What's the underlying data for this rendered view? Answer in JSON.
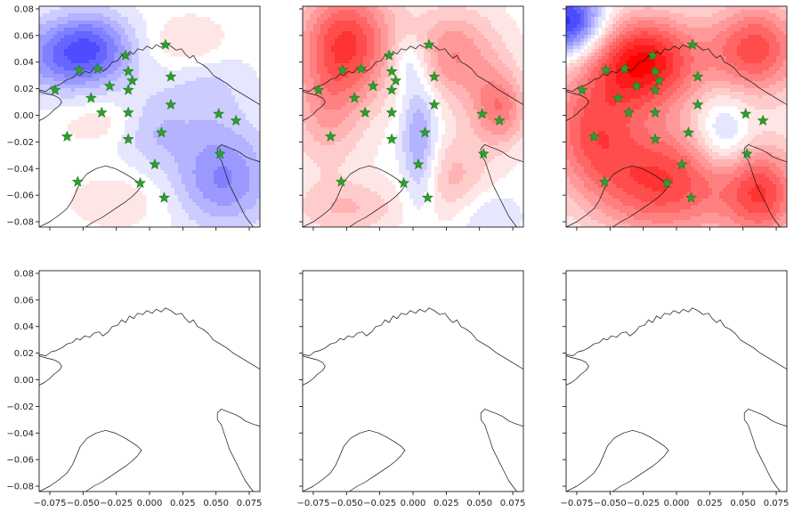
{
  "figure": {
    "layout": "2x3 grid of map panels with shared axes",
    "colormap": "bwr"
  },
  "chart_data": {
    "type": "heatmap",
    "description_units": "x and y in data units",
    "xlim": [
      -0.083,
      0.083
    ],
    "ylim": [
      -0.084,
      0.082
    ],
    "x_ticks": [
      -0.075,
      -0.05,
      -0.025,
      0.0,
      0.025,
      0.05,
      0.075
    ],
    "x_tick_labels": [
      "−0.075",
      "−0.050",
      "−0.025",
      "0.000",
      "0.025",
      "0.050",
      "0.075"
    ],
    "y_ticks": [
      0.08,
      0.06,
      0.04,
      0.02,
      0.0,
      -0.02,
      -0.04,
      -0.06,
      -0.08
    ],
    "y_tick_labels": [
      "0.08",
      "0.06",
      "0.04",
      "0.02",
      "0.00",
      "−0.02",
      "−0.04",
      "−0.06",
      "−0.08"
    ],
    "tick_labels_shown": "left column y-labels, bottom row x-labels",
    "grid": false,
    "marker_color": "#2ca02c",
    "marker_shape": "star",
    "stations": [
      {
        "x": -0.071,
        "y": 0.019
      },
      {
        "x": -0.053,
        "y": 0.034
      },
      {
        "x": -0.039,
        "y": 0.035
      },
      {
        "x": -0.018,
        "y": 0.045
      },
      {
        "x": 0.012,
        "y": 0.053
      },
      {
        "x": -0.044,
        "y": 0.013
      },
      {
        "x": -0.03,
        "y": 0.022
      },
      {
        "x": -0.016,
        "y": 0.033
      },
      {
        "x": -0.013,
        "y": 0.026
      },
      {
        "x": -0.016,
        "y": 0.019
      },
      {
        "x": 0.016,
        "y": 0.029
      },
      {
        "x": -0.036,
        "y": 0.002
      },
      {
        "x": -0.016,
        "y": 0.002
      },
      {
        "x": 0.016,
        "y": 0.008
      },
      {
        "x": 0.052,
        "y": 0.001
      },
      {
        "x": 0.065,
        "y": -0.004
      },
      {
        "x": -0.062,
        "y": -0.016
      },
      {
        "x": -0.016,
        "y": -0.018
      },
      {
        "x": 0.009,
        "y": -0.013
      },
      {
        "x": 0.053,
        "y": -0.029
      },
      {
        "x": 0.004,
        "y": -0.037
      },
      {
        "x": -0.054,
        "y": -0.05
      },
      {
        "x": -0.007,
        "y": -0.051
      },
      {
        "x": 0.011,
        "y": -0.062
      }
    ],
    "panels": [
      {
        "row": 0,
        "col": 0,
        "type": "heatmap",
        "has_field": true,
        "has_markers": true,
        "field_blobs": [
          {
            "x": -0.06,
            "y": 0.045,
            "sx": 0.03,
            "sy": 0.02,
            "a": -0.55
          },
          {
            "x": -0.04,
            "y": 0.055,
            "sx": 0.02,
            "sy": 0.018,
            "a": -0.25
          },
          {
            "x": 0.055,
            "y": -0.05,
            "sx": 0.028,
            "sy": 0.025,
            "a": -0.45
          },
          {
            "x": 0.0,
            "y": -0.01,
            "sx": 0.02,
            "sy": 0.018,
            "a": -0.25
          },
          {
            "x": 0.04,
            "y": 0.03,
            "sx": 0.025,
            "sy": 0.02,
            "a": -0.18
          },
          {
            "x": 0.05,
            "y": -0.01,
            "sx": 0.025,
            "sy": 0.02,
            "a": -0.12
          },
          {
            "x": 0.03,
            "y": 0.052,
            "sx": 0.022,
            "sy": 0.015,
            "a": 0.22
          },
          {
            "x": -0.03,
            "y": -0.005,
            "sx": 0.025,
            "sy": 0.012,
            "a": 0.15
          },
          {
            "x": -0.02,
            "y": -0.065,
            "sx": 0.03,
            "sy": 0.015,
            "a": 0.12
          }
        ]
      },
      {
        "row": 0,
        "col": 1,
        "type": "heatmap",
        "has_field": true,
        "has_markers": true,
        "field_blobs": [
          {
            "x": -0.05,
            "y": 0.055,
            "sx": 0.025,
            "sy": 0.03,
            "a": 0.75
          },
          {
            "x": 0.03,
            "y": 0.045,
            "sx": 0.025,
            "sy": 0.025,
            "a": 0.45
          },
          {
            "x": 0.065,
            "y": 0.005,
            "sx": 0.015,
            "sy": 0.02,
            "a": 0.5
          },
          {
            "x": -0.065,
            "y": 0.0,
            "sx": 0.02,
            "sy": 0.03,
            "a": 0.3
          },
          {
            "x": -0.05,
            "y": -0.07,
            "sx": 0.03,
            "sy": 0.015,
            "a": 0.25
          },
          {
            "x": 0.03,
            "y": -0.05,
            "sx": 0.02,
            "sy": 0.025,
            "a": 0.3
          },
          {
            "x": 0.005,
            "y": -0.02,
            "sx": 0.01,
            "sy": 0.04,
            "a": -0.4
          },
          {
            "x": -0.005,
            "y": 0.04,
            "sx": 0.01,
            "sy": 0.015,
            "a": -0.25
          },
          {
            "x": 0.05,
            "y": -0.075,
            "sx": 0.02,
            "sy": 0.015,
            "a": -0.2
          }
        ]
      },
      {
        "row": 0,
        "col": 2,
        "type": "heatmap",
        "has_field": true,
        "has_markers": true,
        "field_blobs": [
          {
            "x": -0.08,
            "y": 0.07,
            "sx": 0.018,
            "sy": 0.018,
            "a": -0.85
          },
          {
            "x": -0.025,
            "y": 0.04,
            "sx": 0.03,
            "sy": 0.025,
            "a": 0.95
          },
          {
            "x": 0.06,
            "y": 0.05,
            "sx": 0.025,
            "sy": 0.025,
            "a": 0.7
          },
          {
            "x": -0.01,
            "y": -0.05,
            "sx": 0.04,
            "sy": 0.03,
            "a": 0.75
          },
          {
            "x": 0.065,
            "y": -0.06,
            "sx": 0.02,
            "sy": 0.025,
            "a": 0.65
          },
          {
            "x": -0.065,
            "y": -0.01,
            "sx": 0.025,
            "sy": 0.03,
            "a": 0.55
          },
          {
            "x": 0.035,
            "y": -0.015,
            "sx": 0.015,
            "sy": 0.02,
            "a": -0.35
          }
        ]
      },
      {
        "row": 1,
        "col": 0,
        "type": "heatmap",
        "has_field": false,
        "has_markers": false,
        "field_blobs": []
      },
      {
        "row": 1,
        "col": 1,
        "type": "heatmap",
        "has_field": false,
        "has_markers": false,
        "field_blobs": []
      },
      {
        "row": 1,
        "col": 2,
        "type": "heatmap",
        "has_field": false,
        "has_markers": false,
        "field_blobs": []
      }
    ],
    "coastlines": [
      [
        [
          -0.083,
          0.019
        ],
        [
          -0.078,
          0.018
        ],
        [
          -0.074,
          0.021
        ],
        [
          -0.07,
          0.022
        ],
        [
          -0.066,
          0.024
        ],
        [
          -0.062,
          0.027
        ],
        [
          -0.058,
          0.028
        ],
        [
          -0.055,
          0.031
        ],
        [
          -0.052,
          0.03
        ],
        [
          -0.049,
          0.033
        ],
        [
          -0.045,
          0.032
        ],
        [
          -0.042,
          0.035
        ],
        [
          -0.038,
          0.036
        ],
        [
          -0.035,
          0.033
        ],
        [
          -0.031,
          0.036
        ],
        [
          -0.028,
          0.04
        ],
        [
          -0.024,
          0.041
        ],
        [
          -0.021,
          0.045
        ],
        [
          -0.018,
          0.043
        ],
        [
          -0.015,
          0.048
        ],
        [
          -0.012,
          0.046
        ],
        [
          -0.009,
          0.05
        ],
        [
          -0.005,
          0.049
        ],
        [
          -0.002,
          0.052
        ],
        [
          0.002,
          0.05
        ],
        [
          0.005,
          0.053
        ],
        [
          0.009,
          0.051
        ],
        [
          0.012,
          0.054
        ],
        [
          0.016,
          0.052
        ],
        [
          0.02,
          0.049
        ],
        [
          0.024,
          0.05
        ],
        [
          0.027,
          0.046
        ],
        [
          0.03,
          0.043
        ],
        [
          0.033,
          0.045
        ],
        [
          0.036,
          0.04
        ],
        [
          0.04,
          0.038
        ],
        [
          0.044,
          0.035
        ],
        [
          0.048,
          0.03
        ],
        [
          0.053,
          0.027
        ],
        [
          0.058,
          0.024
        ],
        [
          0.063,
          0.02
        ],
        [
          0.068,
          0.017
        ],
        [
          0.073,
          0.014
        ],
        [
          0.078,
          0.011
        ],
        [
          0.083,
          0.008
        ]
      ],
      [
        [
          -0.083,
          -0.004
        ],
        [
          -0.079,
          -0.002
        ],
        [
          -0.075,
          0.001
        ],
        [
          -0.072,
          0.004
        ],
        [
          -0.068,
          0.007
        ],
        [
          -0.066,
          0.01
        ],
        [
          -0.068,
          0.013
        ],
        [
          -0.072,
          0.015
        ],
        [
          -0.076,
          0.016
        ],
        [
          -0.08,
          0.017
        ],
        [
          -0.083,
          0.018
        ]
      ],
      [
        [
          0.083,
          -0.035
        ],
        [
          0.077,
          -0.033
        ],
        [
          0.072,
          -0.031
        ],
        [
          0.068,
          -0.028
        ],
        [
          0.064,
          -0.026
        ],
        [
          0.059,
          -0.024
        ],
        [
          0.054,
          -0.022
        ],
        [
          0.051,
          -0.025
        ],
        [
          0.051,
          -0.03
        ],
        [
          0.054,
          -0.034
        ],
        [
          0.056,
          -0.04
        ],
        [
          0.058,
          -0.046
        ],
        [
          0.06,
          -0.052
        ],
        [
          0.063,
          -0.058
        ],
        [
          0.066,
          -0.064
        ],
        [
          0.069,
          -0.07
        ],
        [
          0.072,
          -0.076
        ],
        [
          0.075,
          -0.08
        ],
        [
          0.078,
          -0.084
        ]
      ],
      [
        [
          -0.083,
          -0.084
        ],
        [
          -0.075,
          -0.08
        ],
        [
          -0.068,
          -0.075
        ],
        [
          -0.062,
          -0.07
        ],
        [
          -0.058,
          -0.064
        ],
        [
          -0.055,
          -0.057
        ],
        [
          -0.052,
          -0.05
        ],
        [
          -0.047,
          -0.044
        ],
        [
          -0.04,
          -0.04
        ],
        [
          -0.033,
          -0.038
        ],
        [
          -0.026,
          -0.04
        ],
        [
          -0.02,
          -0.043
        ],
        [
          -0.015,
          -0.046
        ],
        [
          -0.009,
          -0.05
        ],
        [
          -0.006,
          -0.053
        ],
        [
          -0.009,
          -0.057
        ],
        [
          -0.013,
          -0.061
        ],
        [
          -0.018,
          -0.065
        ],
        [
          -0.024,
          -0.069
        ],
        [
          -0.03,
          -0.073
        ],
        [
          -0.036,
          -0.077
        ],
        [
          -0.042,
          -0.08
        ],
        [
          -0.048,
          -0.084
        ]
      ]
    ]
  }
}
